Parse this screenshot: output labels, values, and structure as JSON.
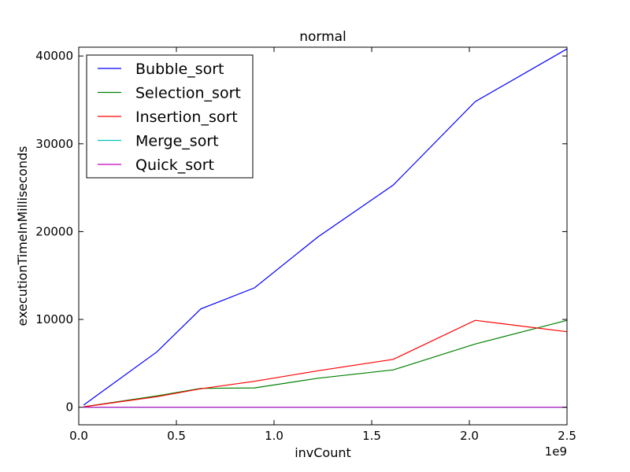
{
  "chart_data": {
    "type": "line",
    "title": "normal",
    "xlabel": "invCount",
    "ylabel": "executionTimeInMilliseconds",
    "x_offset_label": "1e9",
    "x_scale": 1000000000,
    "xlim": [
      0,
      2500000000
    ],
    "ylim": [
      -2000,
      41000
    ],
    "xticks": [
      0,
      500000000,
      1000000000,
      1500000000,
      2000000000,
      2500000000
    ],
    "xtick_labels": [
      "0.0",
      "0.5",
      "1.0",
      "1.5",
      "2.0",
      "2.5"
    ],
    "yticks": [
      0,
      10000,
      20000,
      30000,
      40000
    ],
    "ytick_labels": [
      "0",
      "10000",
      "20000",
      "30000",
      "40000"
    ],
    "grid": false,
    "legend_position": "top-left",
    "x": [
      25000000,
      400000000,
      625000000,
      900000000,
      1225000000,
      1610000000,
      2030000000,
      2500000000
    ],
    "series": [
      {
        "name": "Bubble_sort",
        "color": "#0000ff",
        "values": [
          250,
          6300,
          11200,
          13600,
          19400,
          25300,
          34800,
          40800
        ]
      },
      {
        "name": "Selection_sort",
        "color": "#008000",
        "values": [
          50,
          1300,
          2150,
          2200,
          3300,
          4250,
          7200,
          9900
        ]
      },
      {
        "name": "Insertion_sort",
        "color": "#ff0000",
        "values": [
          50,
          1200,
          2100,
          2950,
          4150,
          5450,
          9900,
          8600
        ]
      },
      {
        "name": "Merge_sort",
        "color": "#00bfbf",
        "values": [
          0,
          0,
          0,
          0,
          0,
          0,
          0,
          0
        ]
      },
      {
        "name": "Quick_sort",
        "color": "#bf00bf",
        "values": [
          0,
          0,
          0,
          0,
          0,
          0,
          0,
          0
        ]
      }
    ]
  }
}
